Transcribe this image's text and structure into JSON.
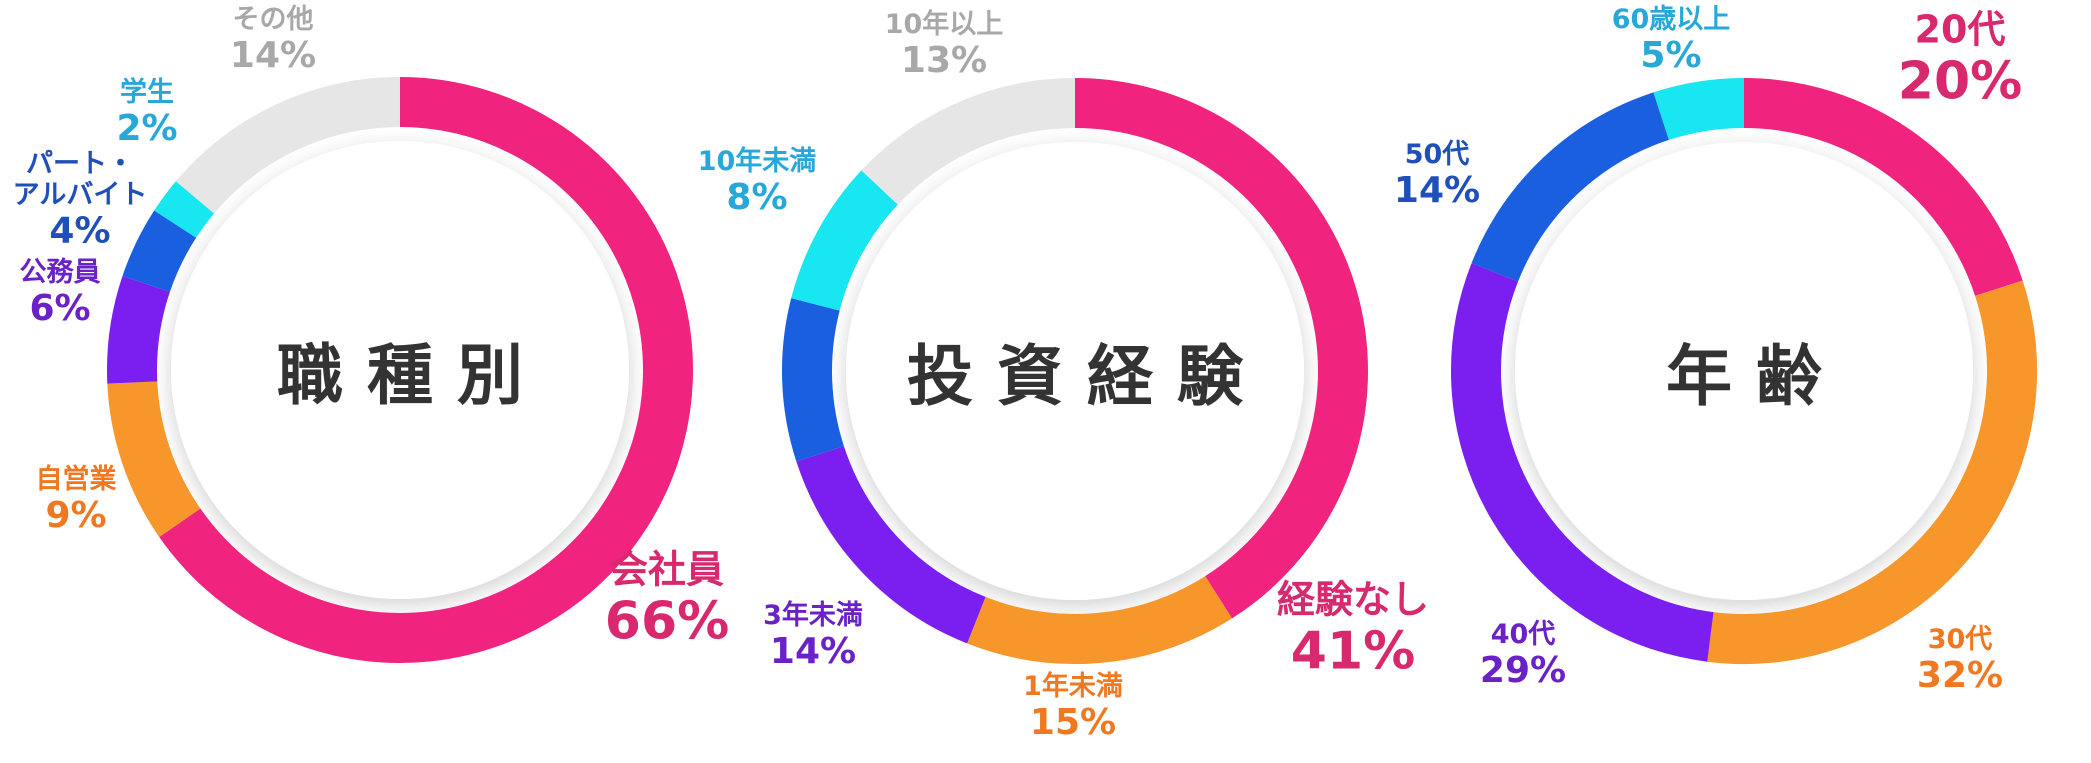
{
  "chart_data": [
    {
      "type": "donut",
      "title": "職種別",
      "categories": [
        "会社員",
        "自営業",
        "公務員",
        "パート・\nアルバイト",
        "学生",
        "その他"
      ],
      "values": [
        66,
        9,
        6,
        4,
        2,
        14
      ],
      "value_labels": [
        "66%",
        "9%",
        "6%",
        "4%",
        "2%",
        "14%"
      ],
      "colors": [
        "#f0247e",
        "#f7962a",
        "#7a1ff0",
        "#1a5fe0",
        "#18e6f0",
        "#e6e6e6"
      ],
      "label_colors": [
        "#d8286e",
        "#f07820",
        "#6a22c8",
        "#1f4fb8",
        "#27a8d8",
        "#a8a8a8"
      ]
    },
    {
      "type": "donut",
      "title": "投資経験",
      "categories": [
        "経験なし",
        "1年未満",
        "3年未満",
        null,
        "10年未満",
        "10年以上"
      ],
      "values": [
        41,
        15,
        14,
        9,
        8,
        13
      ],
      "value_labels": [
        "41%",
        "15%",
        "14%",
        null,
        "8%",
        "13%"
      ],
      "colors": [
        "#f0247e",
        "#f7962a",
        "#7a1ff0",
        "#1a5fe0",
        "#18e6f0",
        "#e6e6e6"
      ],
      "label_colors": [
        "#d8286e",
        "#f07820",
        "#6a22c8",
        "#1f4fb8",
        "#27a8d8",
        "#a8a8a8"
      ]
    },
    {
      "type": "donut",
      "title": "年齢",
      "categories": [
        "20代",
        "30代",
        "40代",
        "50代",
        "60歳以上"
      ],
      "values": [
        20,
        32,
        29,
        14,
        5
      ],
      "value_labels": [
        "20%",
        "32%",
        "29%",
        "14%",
        "5%"
      ],
      "colors": [
        "#f0247e",
        "#f7962a",
        "#7a1ff0",
        "#1a5fe0",
        "#18e6f0"
      ],
      "label_colors": [
        "#d8286e",
        "#f07820",
        "#6a22c8",
        "#1f4fb8",
        "#27a8d8"
      ]
    }
  ]
}
